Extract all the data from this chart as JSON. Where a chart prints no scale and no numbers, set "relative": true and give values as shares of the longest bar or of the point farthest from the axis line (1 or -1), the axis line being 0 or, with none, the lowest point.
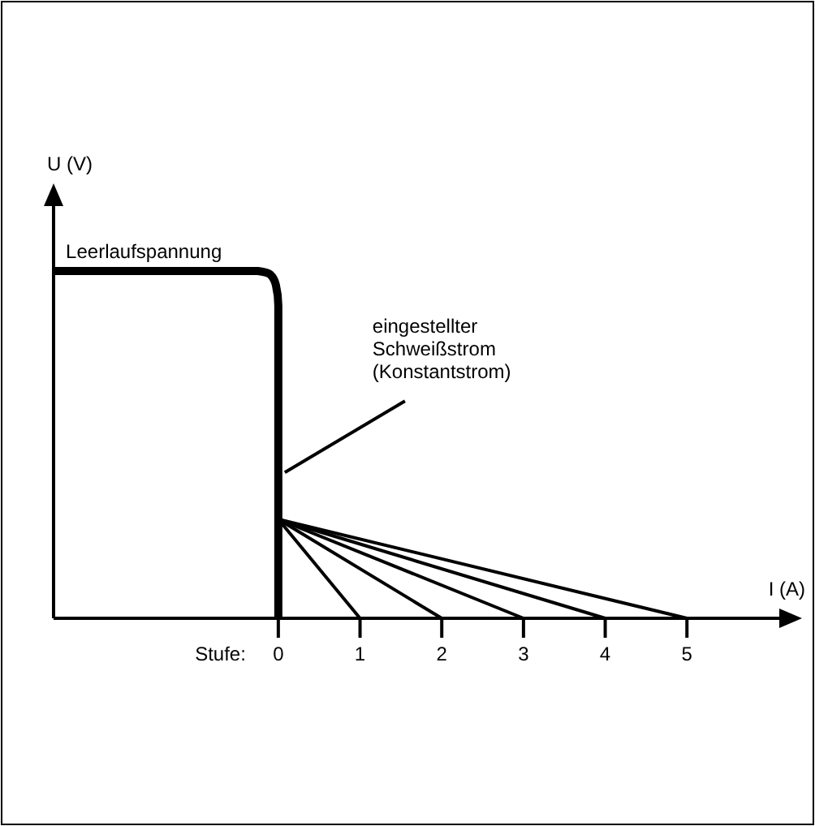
{
  "chart_data": {
    "type": "line",
    "relative": true,
    "xlabel": "I (A)",
    "ylabel": "U (V)",
    "xlim": [
      -2.75,
      6.13
    ],
    "xticks": [
      0,
      1,
      2,
      3,
      4,
      5
    ],
    "grid": false,
    "marker": "none",
    "line_style": "solid",
    "series": [
      {
        "color": "#000000",
        "x": [
          -2.75,
          -0.25,
          -0.1,
          -0.03,
          0,
          0
        ],
        "values": [
          1,
          1,
          0.99,
          0.96,
          0.9,
          0
        ]
      },
      {
        "color": "#000000",
        "x": [
          0,
          1
        ],
        "values": [
          0.285,
          0
        ]
      },
      {
        "color": "#000000",
        "x": [
          0,
          2
        ],
        "values": [
          0.285,
          0
        ]
      },
      {
        "color": "#000000",
        "x": [
          0,
          3
        ],
        "values": [
          0.285,
          0
        ]
      },
      {
        "color": "#000000",
        "x": [
          0,
          4
        ],
        "values": [
          0.285,
          0
        ]
      },
      {
        "color": "#000000",
        "x": [
          0,
          5
        ],
        "values": [
          0.285,
          0
        ]
      }
    ],
    "annotations": [
      {
        "text": "Leerlaufspannung",
        "x": -2.6,
        "y": 1
      },
      {
        "text": "eingestellter\nSchweißstrom\n(Konstantstrom)",
        "x": 0,
        "y": 0.42
      },
      "Stufe:"
    ]
  }
}
